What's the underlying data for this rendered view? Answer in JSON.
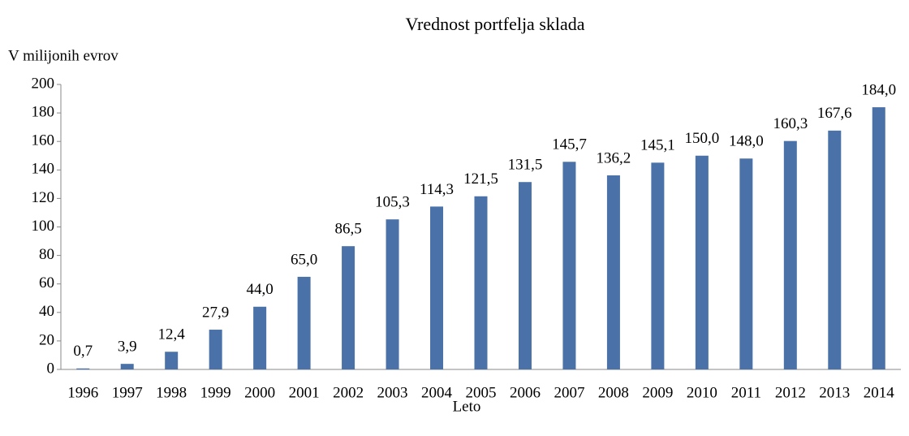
{
  "chart_data": {
    "type": "bar",
    "title": "Vrednost portfelja sklada",
    "y_label": "V milijonih evrov",
    "x_label": "Leto",
    "categories": [
      "1996",
      "1997",
      "1998",
      "1999",
      "2000",
      "2001",
      "2002",
      "2003",
      "2004",
      "2005",
      "2006",
      "2007",
      "2008",
      "2009",
      "2010",
      "2011",
      "2012",
      "2013",
      "2014"
    ],
    "values": [
      0.7,
      3.9,
      12.4,
      27.9,
      44.0,
      65.0,
      86.5,
      105.3,
      114.3,
      121.5,
      131.5,
      145.7,
      136.2,
      145.1,
      150.0,
      148.0,
      160.3,
      167.6,
      184.0
    ],
    "value_labels": [
      "0,7",
      "3,9",
      "12,4",
      "27,9",
      "44,0",
      "65,0",
      "86,5",
      "105,3",
      "114,3",
      "121,5",
      "131,5",
      "145,7",
      "136,2",
      "145,1",
      "150,0",
      "148,0",
      "160,3",
      "167,6",
      "184,0"
    ],
    "color": "#4a72a8",
    "ylim": [
      0,
      200
    ],
    "yticks": [
      0,
      20,
      40,
      60,
      80,
      100,
      120,
      140,
      160,
      180,
      200
    ],
    "grid": false
  }
}
